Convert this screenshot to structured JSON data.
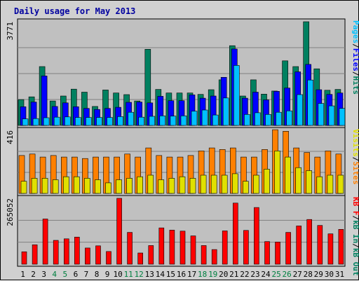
{
  "chart_data": {
    "type": "bar",
    "title": "Daily usage for May 2013",
    "categories": [
      "1",
      "2",
      "3",
      "4",
      "5",
      "6",
      "7",
      "8",
      "9",
      "10",
      "11",
      "12",
      "13",
      "14",
      "15",
      "16",
      "17",
      "18",
      "19",
      "20",
      "21",
      "22",
      "23",
      "24",
      "25",
      "26",
      "27",
      "28",
      "29",
      "30",
      "31"
    ],
    "weekend_days": [
      "4",
      "5",
      "11",
      "12",
      "18",
      "19",
      "25",
      "26"
    ],
    "weekend_color": "#008040",
    "weekday_color": "#000000",
    "panels": [
      {
        "name": "top",
        "ymax_label": "3771",
        "ylim": [
          0,
          3771
        ],
        "legend": [
          {
            "text": "Pages",
            "color": "#00c0ff"
          },
          {
            "text": "/",
            "color": "#000000"
          },
          {
            "text": "Files",
            "color": "#0000ff"
          },
          {
            "text": "/",
            "color": "#000000"
          },
          {
            "text": "Hits",
            "color": "#008060"
          }
        ],
        "series": [
          {
            "name": "Hits",
            "color": "#008060",
            "values": [
              940,
              1040,
              2140,
              890,
              1070,
              1320,
              1210,
              690,
              1290,
              1180,
              1120,
              890,
              2770,
              1310,
              1180,
              1180,
              1180,
              1130,
              1300,
              1660,
              2900,
              1070,
              1660,
              1140,
              1250,
              2350,
              2140,
              3771,
              2060,
              1280,
              1310
            ]
          },
          {
            "name": "Files",
            "color": "#0000ff",
            "values": [
              680,
              850,
              1800,
              690,
              820,
              680,
              620,
              580,
              620,
              660,
              840,
              850,
              820,
              1060,
              900,
              900,
              1110,
              990,
              1070,
              1750,
              2780,
              990,
              1210,
              930,
              1240,
              1360,
              1950,
              2220,
              1300,
              1130,
              1180
            ]
          },
          {
            "name": "Pages",
            "color": "#00c0ff",
            "values": [
              240,
              250,
              280,
              300,
              310,
              290,
              290,
              290,
              290,
              320,
              480,
              300,
              330,
              350,
              340,
              350,
              520,
              560,
              380,
              1000,
              2180,
              400,
              460,
              400,
              480,
              530,
              1120,
              1650,
              800,
              710,
              620
            ]
          }
        ]
      },
      {
        "name": "middle",
        "ymax_label": "416",
        "ylim": [
          0,
          416
        ],
        "legend": [
          {
            "text": "Visits",
            "color": "#e0e000"
          },
          {
            "text": "/",
            "color": "#000000"
          },
          {
            "text": "Sites",
            "color": "#ff8000"
          }
        ],
        "series": [
          {
            "name": "Sites",
            "color": "#ff8000",
            "values": [
              250,
              260,
              240,
              250,
              240,
              240,
              230,
              240,
              240,
              240,
              260,
              240,
              300,
              250,
              240,
              240,
              250,
              280,
              300,
              290,
              300,
              240,
              240,
              290,
              420,
              410,
              300,
              270,
              240,
              280,
              260
            ]
          },
          {
            "name": "Visits",
            "color": "#e0e000",
            "values": [
              80,
              100,
              100,
              90,
              110,
              110,
              100,
              90,
              70,
              90,
              100,
              110,
              120,
              90,
              100,
              110,
              100,
              120,
              120,
              120,
              130,
              80,
              120,
              160,
              280,
              240,
              170,
              150,
              110,
              120,
              120
            ]
          }
        ]
      },
      {
        "name": "bottom",
        "ymax_label": "265052",
        "ylim": [
          0,
          265052
        ],
        "legend": [
          {
            "text": "KB F",
            "color": "#ff0000"
          },
          {
            "text": "/",
            "color": "#000000"
          },
          {
            "text": "kB In",
            "color": "#008060"
          },
          {
            "text": "/",
            "color": "#000000"
          },
          {
            "text": "kB Out",
            "color": "#008060"
          }
        ],
        "series": [
          {
            "name": "KB F",
            "color": "#ff0000",
            "values": [
              50000,
              78000,
              182000,
              96000,
              102000,
              109000,
              65000,
              74000,
              51000,
              265052,
              128000,
              45000,
              75000,
              146000,
              137000,
              133000,
              114000,
              75000,
              59000,
              134000,
              246000,
              136000,
              228000,
              91000,
              89000,
              128000,
              154000,
              180000,
              156000,
              122000,
              140000
            ]
          }
        ]
      }
    ]
  }
}
